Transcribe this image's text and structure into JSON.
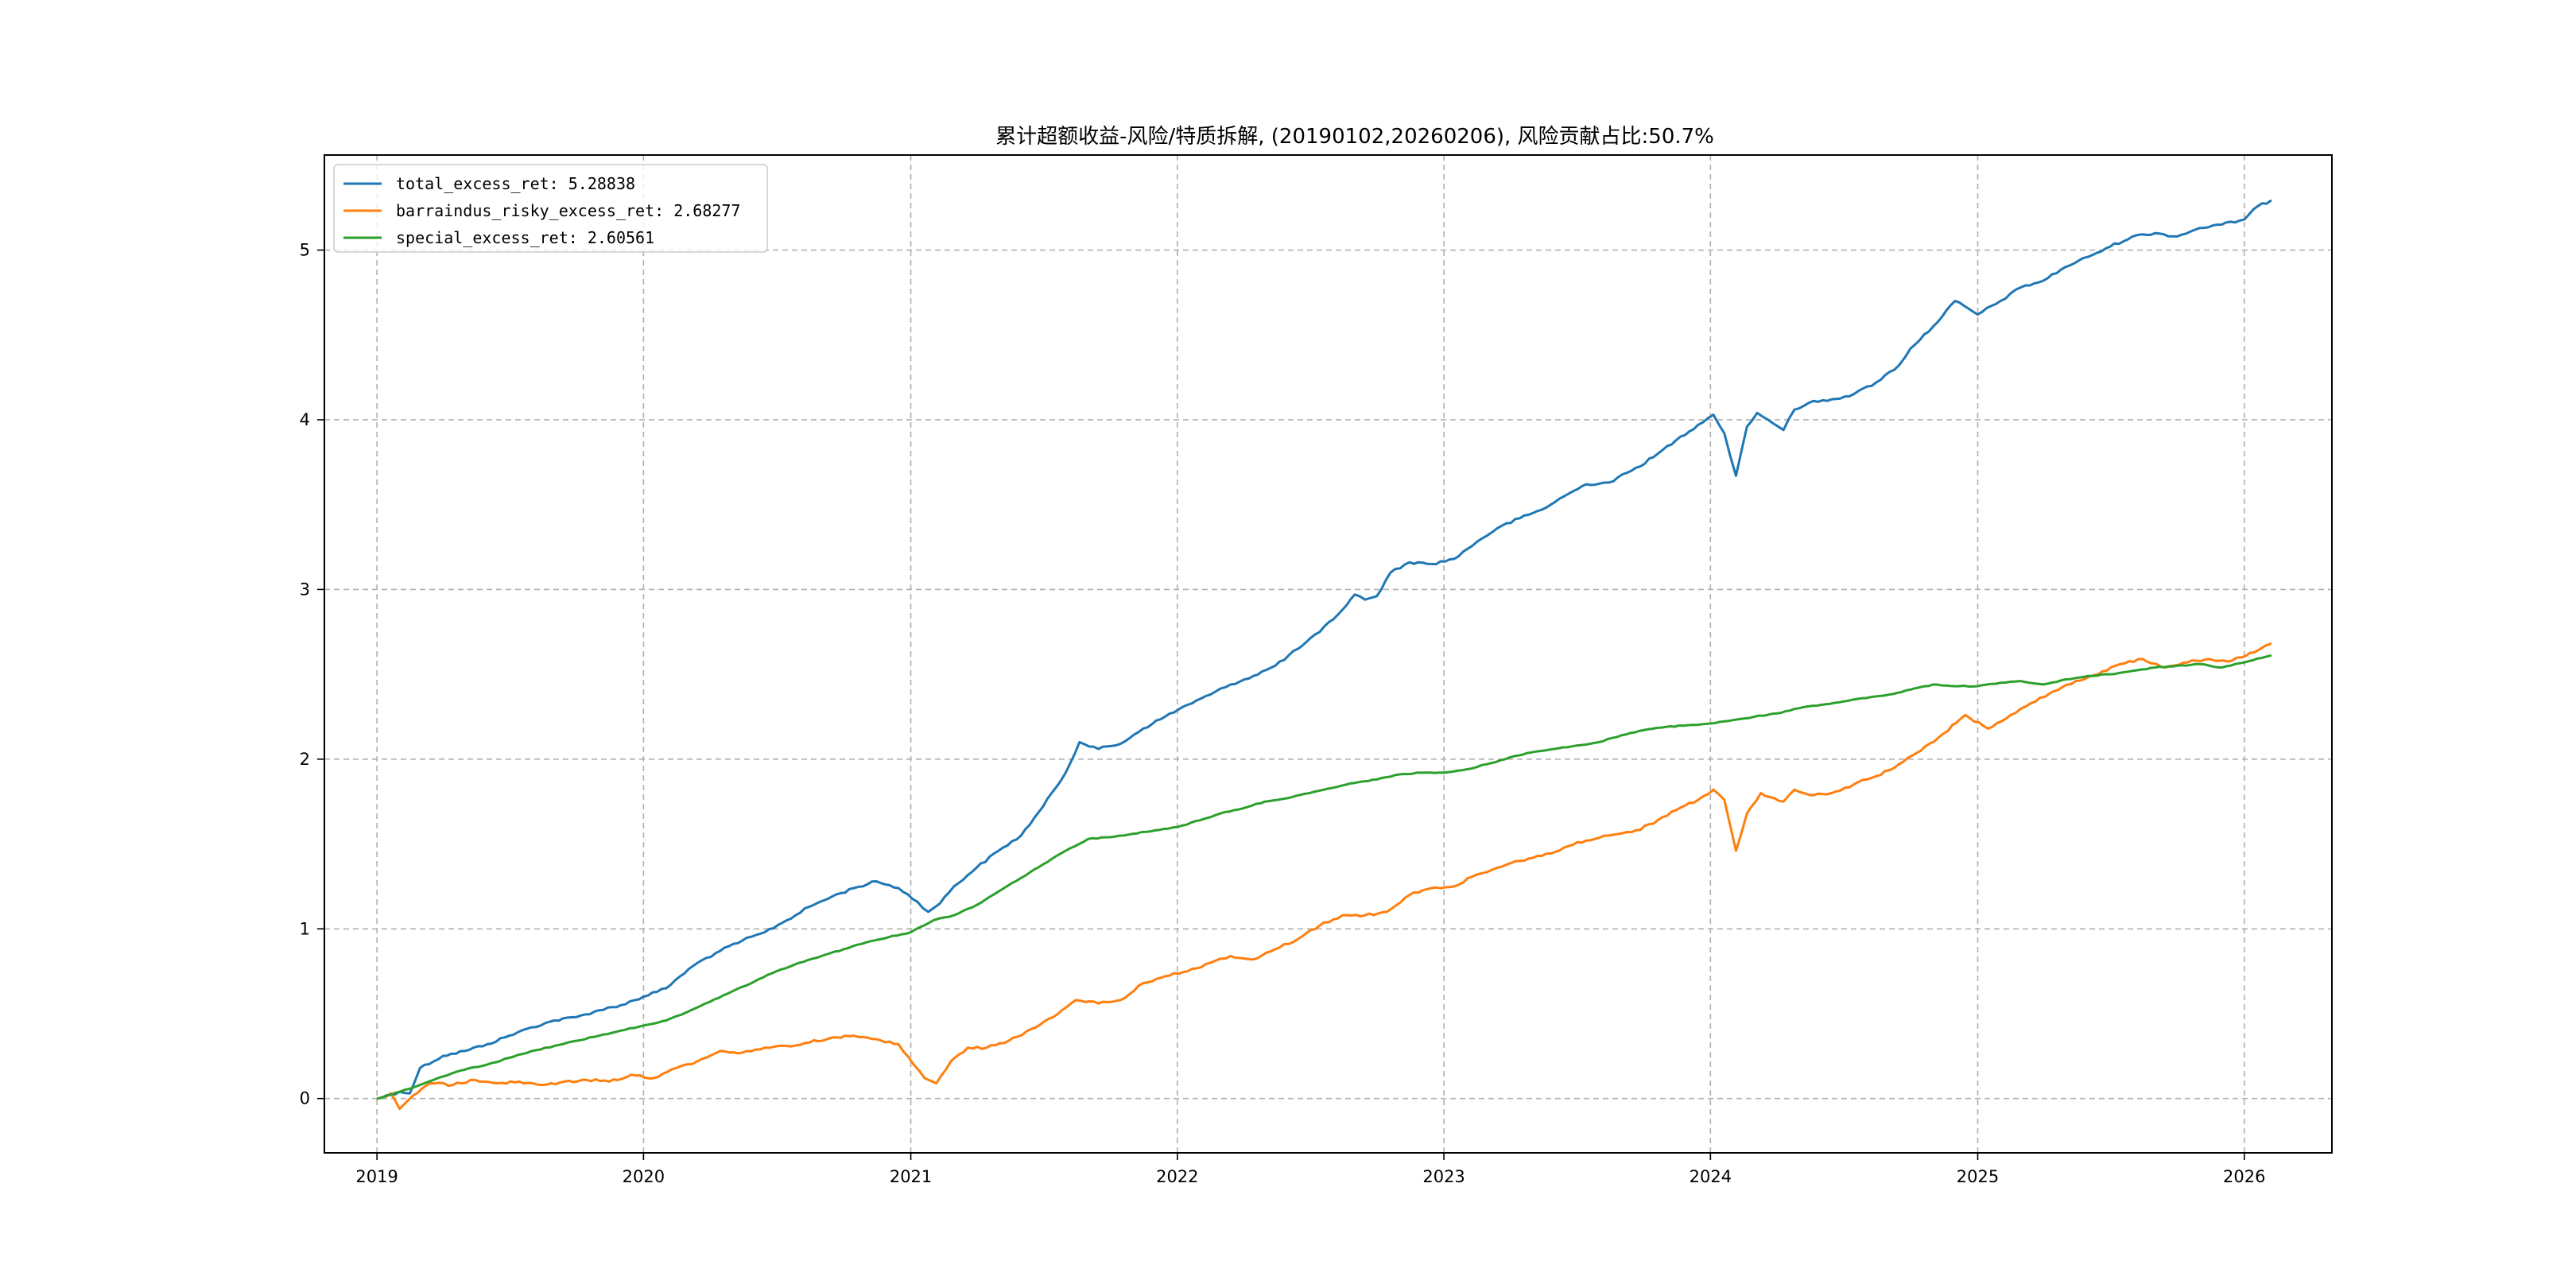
{
  "chart_data": {
    "type": "line",
    "title": "累计超额收益-风险/特质拆解, (20190102,20260206), 风险贡献占比:50.7%",
    "xlabel": "",
    "ylabel": "",
    "x_ticks": [
      "2019",
      "2020",
      "2021",
      "2022",
      "2023",
      "2024",
      "2025",
      "2026"
    ],
    "y_ticks": [
      "0",
      "1",
      "2",
      "3",
      "4",
      "5"
    ],
    "xlim": [
      "2018-10-21",
      "2026-05-01"
    ],
    "ylim": [
      -0.32,
      5.56
    ],
    "grid": true,
    "legend_position": "top-left",
    "series": [
      {
        "name": "total_excess_ret: 5.28838",
        "color": "#1f77b4",
        "points": [
          [
            "2019-01-02",
            0.0
          ],
          [
            "2019-02-01",
            0.04
          ],
          [
            "2019-02-15",
            0.03
          ],
          [
            "2019-03-01",
            0.18
          ],
          [
            "2019-04-01",
            0.25
          ],
          [
            "2019-05-01",
            0.28
          ],
          [
            "2019-06-01",
            0.32
          ],
          [
            "2019-07-01",
            0.37
          ],
          [
            "2019-08-01",
            0.42
          ],
          [
            "2019-09-01",
            0.46
          ],
          [
            "2019-10-01",
            0.48
          ],
          [
            "2019-11-01",
            0.52
          ],
          [
            "2019-12-01",
            0.55
          ],
          [
            "2020-01-01",
            0.6
          ],
          [
            "2020-02-01",
            0.65
          ],
          [
            "2020-02-20",
            0.72
          ],
          [
            "2020-03-15",
            0.8
          ],
          [
            "2020-04-15",
            0.87
          ],
          [
            "2020-05-15",
            0.93
          ],
          [
            "2020-06-15",
            0.98
          ],
          [
            "2020-07-15",
            1.05
          ],
          [
            "2020-08-15",
            1.13
          ],
          [
            "2020-09-15",
            1.19
          ],
          [
            "2020-10-15",
            1.24
          ],
          [
            "2020-11-15",
            1.28
          ],
          [
            "2020-12-15",
            1.24
          ],
          [
            "2021-01-10",
            1.16
          ],
          [
            "2021-01-25",
            1.1
          ],
          [
            "2021-02-10",
            1.15
          ],
          [
            "2021-03-01",
            1.25
          ],
          [
            "2021-04-01",
            1.36
          ],
          [
            "2021-05-01",
            1.46
          ],
          [
            "2021-06-01",
            1.55
          ],
          [
            "2021-07-01",
            1.72
          ],
          [
            "2021-08-01",
            1.92
          ],
          [
            "2021-08-20",
            2.1
          ],
          [
            "2021-09-15",
            2.06
          ],
          [
            "2021-10-15",
            2.09
          ],
          [
            "2021-11-15",
            2.18
          ],
          [
            "2021-12-15",
            2.25
          ],
          [
            "2022-01-15",
            2.32
          ],
          [
            "2022-02-15",
            2.38
          ],
          [
            "2022-03-15",
            2.44
          ],
          [
            "2022-04-15",
            2.49
          ],
          [
            "2022-05-15",
            2.55
          ],
          [
            "2022-06-15",
            2.65
          ],
          [
            "2022-07-15",
            2.75
          ],
          [
            "2022-08-15",
            2.88
          ],
          [
            "2022-09-01",
            2.97
          ],
          [
            "2022-09-15",
            2.94
          ],
          [
            "2022-10-01",
            2.96
          ],
          [
            "2022-10-20",
            3.1
          ],
          [
            "2022-11-15",
            3.16
          ],
          [
            "2022-12-15",
            3.15
          ],
          [
            "2023-01-15",
            3.18
          ],
          [
            "2023-02-15",
            3.28
          ],
          [
            "2023-03-15",
            3.36
          ],
          [
            "2023-04-15",
            3.42
          ],
          [
            "2023-05-15",
            3.47
          ],
          [
            "2023-06-15",
            3.55
          ],
          [
            "2023-07-15",
            3.62
          ],
          [
            "2023-08-15",
            3.63
          ],
          [
            "2023-09-15",
            3.7
          ],
          [
            "2023-10-15",
            3.78
          ],
          [
            "2023-11-15",
            3.88
          ],
          [
            "2023-12-15",
            3.97
          ],
          [
            "2024-01-05",
            4.03
          ],
          [
            "2024-01-20",
            3.92
          ],
          [
            "2024-02-05",
            3.67
          ],
          [
            "2024-02-20",
            3.96
          ],
          [
            "2024-03-05",
            4.04
          ],
          [
            "2024-03-20",
            4.0
          ],
          [
            "2024-04-10",
            3.94
          ],
          [
            "2024-04-25",
            4.06
          ],
          [
            "2024-05-15",
            4.1
          ],
          [
            "2024-06-15",
            4.12
          ],
          [
            "2024-07-15",
            4.15
          ],
          [
            "2024-08-15",
            4.22
          ],
          [
            "2024-09-15",
            4.32
          ],
          [
            "2024-10-01",
            4.42
          ],
          [
            "2024-11-01",
            4.55
          ],
          [
            "2024-12-01",
            4.7
          ],
          [
            "2025-01-01",
            4.62
          ],
          [
            "2025-02-01",
            4.7
          ],
          [
            "2025-03-01",
            4.78
          ],
          [
            "2025-04-01",
            4.82
          ],
          [
            "2025-05-01",
            4.9
          ],
          [
            "2025-06-01",
            4.96
          ],
          [
            "2025-07-01",
            5.02
          ],
          [
            "2025-08-01",
            5.08
          ],
          [
            "2025-09-01",
            5.1
          ],
          [
            "2025-10-01",
            5.08
          ],
          [
            "2025-11-01",
            5.13
          ],
          [
            "2025-12-01",
            5.15
          ],
          [
            "2026-01-01",
            5.18
          ],
          [
            "2026-01-20",
            5.26
          ],
          [
            "2026-02-06",
            5.29
          ]
        ]
      },
      {
        "name": "barraindus_risky_excess_ret: 2.68277",
        "color": "#ff7f0e",
        "points": [
          [
            "2019-01-02",
            0.0
          ],
          [
            "2019-01-20",
            0.03
          ],
          [
            "2019-02-01",
            -0.06
          ],
          [
            "2019-02-20",
            0.02
          ],
          [
            "2019-03-15",
            0.09
          ],
          [
            "2019-04-15",
            0.08
          ],
          [
            "2019-05-15",
            0.11
          ],
          [
            "2019-06-15",
            0.09
          ],
          [
            "2019-07-15",
            0.1
          ],
          [
            "2019-08-15",
            0.08
          ],
          [
            "2019-09-15",
            0.1
          ],
          [
            "2019-10-15",
            0.11
          ],
          [
            "2019-11-15",
            0.1
          ],
          [
            "2019-12-15",
            0.14
          ],
          [
            "2020-01-15",
            0.12
          ],
          [
            "2020-02-15",
            0.18
          ],
          [
            "2020-03-15",
            0.22
          ],
          [
            "2020-04-15",
            0.28
          ],
          [
            "2020-05-15",
            0.27
          ],
          [
            "2020-06-15",
            0.3
          ],
          [
            "2020-07-15",
            0.31
          ],
          [
            "2020-08-15",
            0.33
          ],
          [
            "2020-09-15",
            0.36
          ],
          [
            "2020-10-15",
            0.37
          ],
          [
            "2020-11-15",
            0.35
          ],
          [
            "2020-12-15",
            0.32
          ],
          [
            "2021-01-05",
            0.2
          ],
          [
            "2021-01-20",
            0.12
          ],
          [
            "2021-02-05",
            0.09
          ],
          [
            "2021-02-25",
            0.22
          ],
          [
            "2021-03-20",
            0.3
          ],
          [
            "2021-04-15",
            0.3
          ],
          [
            "2021-05-15",
            0.34
          ],
          [
            "2021-06-15",
            0.41
          ],
          [
            "2021-07-15",
            0.48
          ],
          [
            "2021-08-15",
            0.58
          ],
          [
            "2021-09-15",
            0.56
          ],
          [
            "2021-10-15",
            0.58
          ],
          [
            "2021-11-15",
            0.68
          ],
          [
            "2021-12-15",
            0.72
          ],
          [
            "2022-01-15",
            0.75
          ],
          [
            "2022-02-15",
            0.8
          ],
          [
            "2022-03-15",
            0.84
          ],
          [
            "2022-04-15",
            0.82
          ],
          [
            "2022-05-15",
            0.88
          ],
          [
            "2022-06-15",
            0.94
          ],
          [
            "2022-07-15",
            1.02
          ],
          [
            "2022-08-15",
            1.08
          ],
          [
            "2022-09-15",
            1.08
          ],
          [
            "2022-10-15",
            1.1
          ],
          [
            "2022-11-15",
            1.2
          ],
          [
            "2022-12-15",
            1.24
          ],
          [
            "2023-01-15",
            1.25
          ],
          [
            "2023-02-15",
            1.32
          ],
          [
            "2023-03-15",
            1.36
          ],
          [
            "2023-04-15",
            1.4
          ],
          [
            "2023-05-15",
            1.43
          ],
          [
            "2023-06-15",
            1.48
          ],
          [
            "2023-07-15",
            1.52
          ],
          [
            "2023-08-15",
            1.55
          ],
          [
            "2023-09-15",
            1.57
          ],
          [
            "2023-10-15",
            1.62
          ],
          [
            "2023-11-15",
            1.7
          ],
          [
            "2023-12-15",
            1.76
          ],
          [
            "2024-01-05",
            1.82
          ],
          [
            "2024-01-20",
            1.76
          ],
          [
            "2024-02-05",
            1.46
          ],
          [
            "2024-02-20",
            1.68
          ],
          [
            "2024-03-10",
            1.8
          ],
          [
            "2024-04-10",
            1.75
          ],
          [
            "2024-04-25",
            1.82
          ],
          [
            "2024-05-15",
            1.79
          ],
          [
            "2024-06-15",
            1.8
          ],
          [
            "2024-07-15",
            1.85
          ],
          [
            "2024-08-15",
            1.9
          ],
          [
            "2024-09-15",
            1.97
          ],
          [
            "2024-10-15",
            2.05
          ],
          [
            "2024-11-15",
            2.15
          ],
          [
            "2024-12-15",
            2.26
          ],
          [
            "2025-01-15",
            2.18
          ],
          [
            "2025-02-15",
            2.26
          ],
          [
            "2025-03-15",
            2.33
          ],
          [
            "2025-04-15",
            2.4
          ],
          [
            "2025-05-15",
            2.46
          ],
          [
            "2025-06-15",
            2.5
          ],
          [
            "2025-07-15",
            2.56
          ],
          [
            "2025-08-15",
            2.59
          ],
          [
            "2025-09-15",
            2.54
          ],
          [
            "2025-10-15",
            2.57
          ],
          [
            "2025-11-15",
            2.59
          ],
          [
            "2025-12-15",
            2.58
          ],
          [
            "2026-01-15",
            2.63
          ],
          [
            "2026-02-06",
            2.68
          ]
        ]
      },
      {
        "name": "special_excess_ret: 2.60561",
        "color": "#2ca02c",
        "points": [
          [
            "2019-01-02",
            0.0
          ],
          [
            "2019-02-01",
            0.04
          ],
          [
            "2019-03-01",
            0.08
          ],
          [
            "2019-04-01",
            0.13
          ],
          [
            "2019-05-01",
            0.17
          ],
          [
            "2019-06-01",
            0.2
          ],
          [
            "2019-07-01",
            0.24
          ],
          [
            "2019-08-01",
            0.28
          ],
          [
            "2019-09-01",
            0.31
          ],
          [
            "2019-10-01",
            0.34
          ],
          [
            "2019-11-01",
            0.37
          ],
          [
            "2019-12-01",
            0.4
          ],
          [
            "2020-01-01",
            0.43
          ],
          [
            "2020-02-01",
            0.46
          ],
          [
            "2020-03-01",
            0.51
          ],
          [
            "2020-04-01",
            0.57
          ],
          [
            "2020-05-01",
            0.63
          ],
          [
            "2020-06-01",
            0.69
          ],
          [
            "2020-07-01",
            0.75
          ],
          [
            "2020-08-01",
            0.8
          ],
          [
            "2020-09-01",
            0.84
          ],
          [
            "2020-10-01",
            0.88
          ],
          [
            "2020-11-01",
            0.92
          ],
          [
            "2020-12-01",
            0.95
          ],
          [
            "2021-01-01",
            0.98
          ],
          [
            "2021-02-01",
            1.05
          ],
          [
            "2021-03-01",
            1.08
          ],
          [
            "2021-04-01",
            1.14
          ],
          [
            "2021-05-01",
            1.22
          ],
          [
            "2021-06-01",
            1.3
          ],
          [
            "2021-07-01",
            1.38
          ],
          [
            "2021-08-01",
            1.46
          ],
          [
            "2021-09-01",
            1.53
          ],
          [
            "2021-10-01",
            1.54
          ],
          [
            "2021-11-01",
            1.56
          ],
          [
            "2021-12-01",
            1.58
          ],
          [
            "2022-01-01",
            1.6
          ],
          [
            "2022-02-01",
            1.64
          ],
          [
            "2022-03-01",
            1.68
          ],
          [
            "2022-04-01",
            1.71
          ],
          [
            "2022-05-01",
            1.75
          ],
          [
            "2022-06-01",
            1.77
          ],
          [
            "2022-07-01",
            1.8
          ],
          [
            "2022-08-01",
            1.83
          ],
          [
            "2022-09-01",
            1.86
          ],
          [
            "2022-10-01",
            1.88
          ],
          [
            "2022-11-01",
            1.91
          ],
          [
            "2022-12-01",
            1.92
          ],
          [
            "2023-01-01",
            1.92
          ],
          [
            "2023-02-01",
            1.94
          ],
          [
            "2023-03-01",
            1.97
          ],
          [
            "2023-04-01",
            2.01
          ],
          [
            "2023-05-01",
            2.04
          ],
          [
            "2023-06-01",
            2.06
          ],
          [
            "2023-07-01",
            2.08
          ],
          [
            "2023-08-01",
            2.1
          ],
          [
            "2023-09-01",
            2.14
          ],
          [
            "2023-10-01",
            2.17
          ],
          [
            "2023-11-01",
            2.19
          ],
          [
            "2023-12-01",
            2.2
          ],
          [
            "2024-01-01",
            2.21
          ],
          [
            "2024-02-01",
            2.23
          ],
          [
            "2024-03-01",
            2.25
          ],
          [
            "2024-04-01",
            2.27
          ],
          [
            "2024-05-01",
            2.3
          ],
          [
            "2024-06-01",
            2.32
          ],
          [
            "2024-07-01",
            2.34
          ],
          [
            "2024-08-01",
            2.36
          ],
          [
            "2024-09-01",
            2.38
          ],
          [
            "2024-10-01",
            2.41
          ],
          [
            "2024-11-01",
            2.44
          ],
          [
            "2024-12-01",
            2.43
          ],
          [
            "2025-01-01",
            2.43
          ],
          [
            "2025-02-01",
            2.45
          ],
          [
            "2025-03-01",
            2.46
          ],
          [
            "2025-04-01",
            2.44
          ],
          [
            "2025-05-01",
            2.47
          ],
          [
            "2025-06-01",
            2.49
          ],
          [
            "2025-07-01",
            2.5
          ],
          [
            "2025-08-01",
            2.52
          ],
          [
            "2025-09-01",
            2.54
          ],
          [
            "2025-10-01",
            2.55
          ],
          [
            "2025-11-01",
            2.56
          ],
          [
            "2025-12-01",
            2.54
          ],
          [
            "2026-01-01",
            2.57
          ],
          [
            "2026-02-06",
            2.61
          ]
        ]
      }
    ]
  }
}
